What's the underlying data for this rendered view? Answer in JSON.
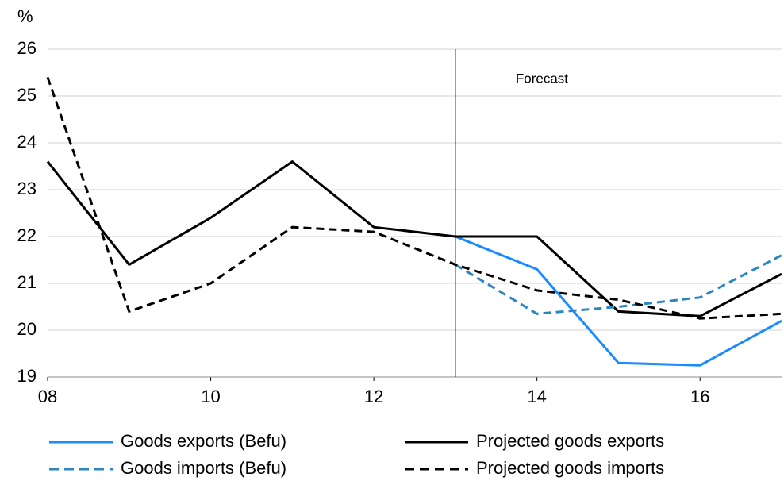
{
  "chart_data": {
    "type": "line",
    "y_unit": "%",
    "x": [
      8,
      9,
      10,
      11,
      12,
      13,
      14,
      15,
      16,
      17
    ],
    "xlim": [
      8,
      17
    ],
    "xticks": [
      {
        "value": 8,
        "label": "08"
      },
      10,
      12,
      14,
      16
    ],
    "ylim": [
      19,
      26
    ],
    "yticks": [
      19,
      20,
      21,
      22,
      23,
      24,
      25,
      26
    ],
    "grid": true,
    "annotations": [
      {
        "text": "Forecast",
        "x": 13
      }
    ],
    "series": [
      {
        "name": "Goods exports (Befu)",
        "color": "#1a8cff",
        "dashed": false,
        "values": [
          null,
          null,
          null,
          null,
          null,
          22.0,
          21.3,
          19.3,
          19.25,
          20.2
        ]
      },
      {
        "name": "Projected goods exports",
        "color": "#000000",
        "dashed": false,
        "values": [
          23.6,
          21.4,
          22.4,
          23.6,
          22.2,
          22.0,
          22.0,
          20.4,
          20.3,
          21.2
        ]
      },
      {
        "name": "Goods imports (Befu)",
        "color": "#2b86c2",
        "dashed": true,
        "values": [
          null,
          null,
          null,
          null,
          null,
          21.4,
          20.35,
          20.5,
          20.7,
          21.6
        ]
      },
      {
        "name": "Projected goods imports",
        "color": "#000000",
        "dashed": true,
        "values": [
          25.4,
          20.4,
          21.0,
          22.2,
          22.1,
          21.4,
          20.85,
          20.65,
          20.25,
          20.35
        ]
      }
    ]
  }
}
